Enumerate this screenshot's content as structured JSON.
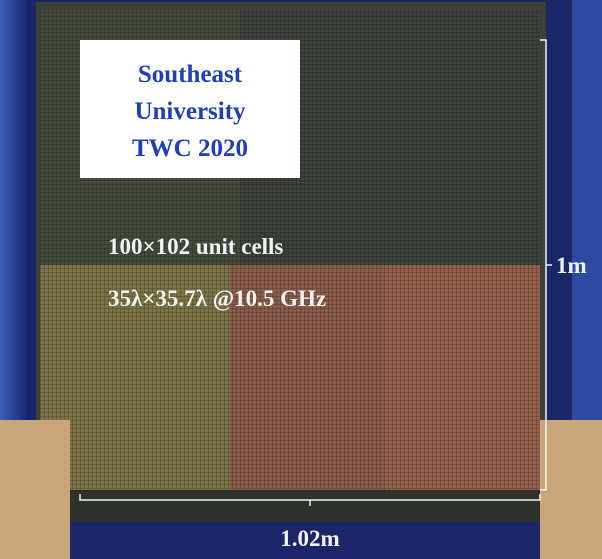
{
  "label_box": {
    "lines": [
      "Southeast",
      "University",
      "TWC 2020"
    ]
  },
  "annotations": [
    "100×102 unit cells",
    "35λ×35.7λ @10.5 GHz"
  ],
  "dimensions": {
    "height": "1m",
    "width": "1.02m"
  }
}
